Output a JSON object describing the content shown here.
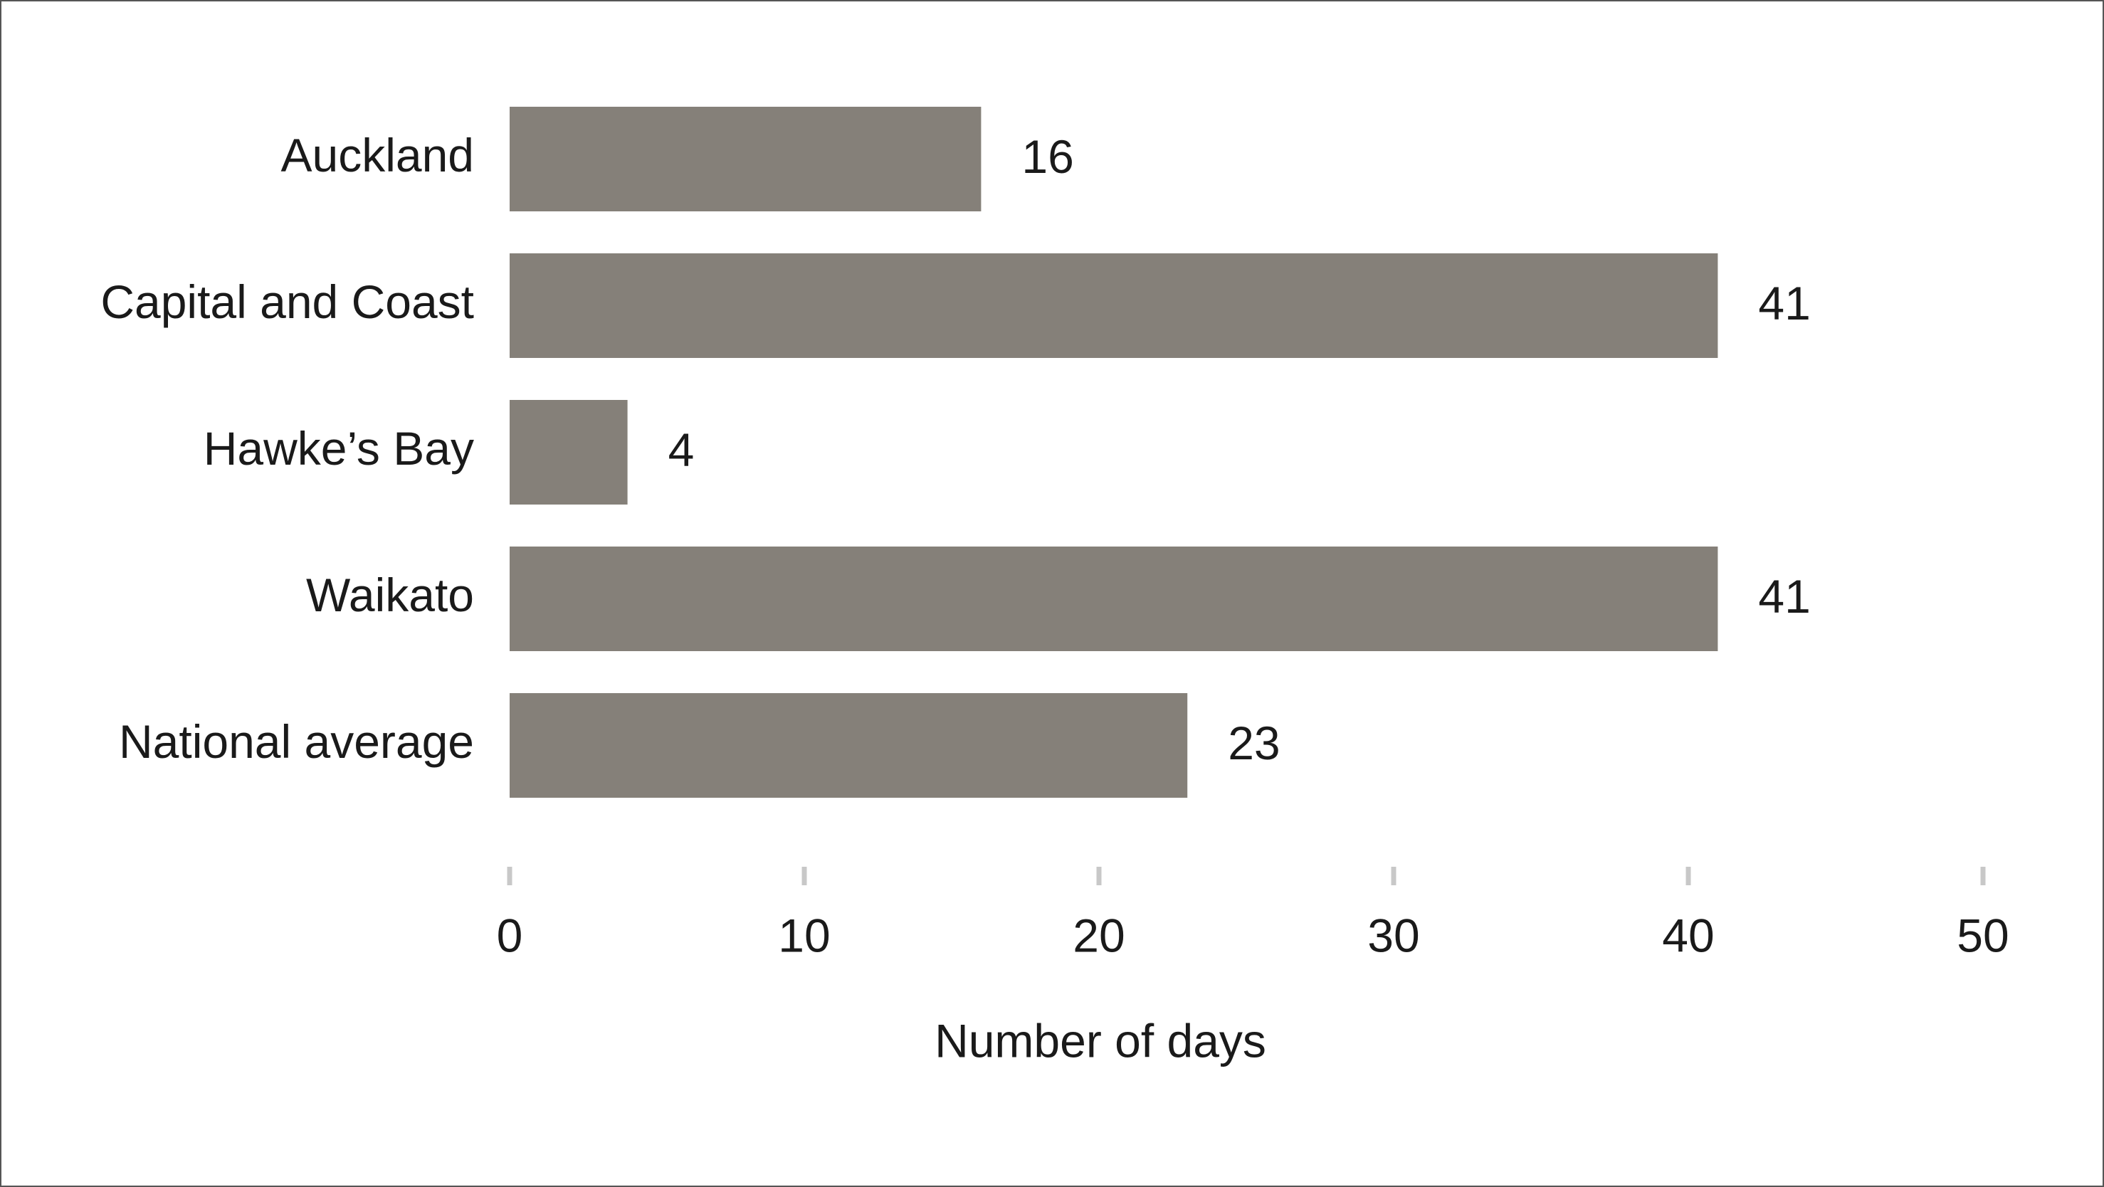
{
  "chart_data": {
    "type": "bar",
    "orientation": "horizontal",
    "categories": [
      "Auckland",
      "Capital and Coast",
      "Hawke’s Bay",
      "Waikato",
      "National average"
    ],
    "values": [
      16,
      41,
      4,
      41,
      23
    ],
    "color": "#858079",
    "xlabel": "Number of days",
    "xlim": [
      0,
      50
    ],
    "xticks": [
      0,
      10,
      20,
      30,
      40,
      50
    ]
  }
}
